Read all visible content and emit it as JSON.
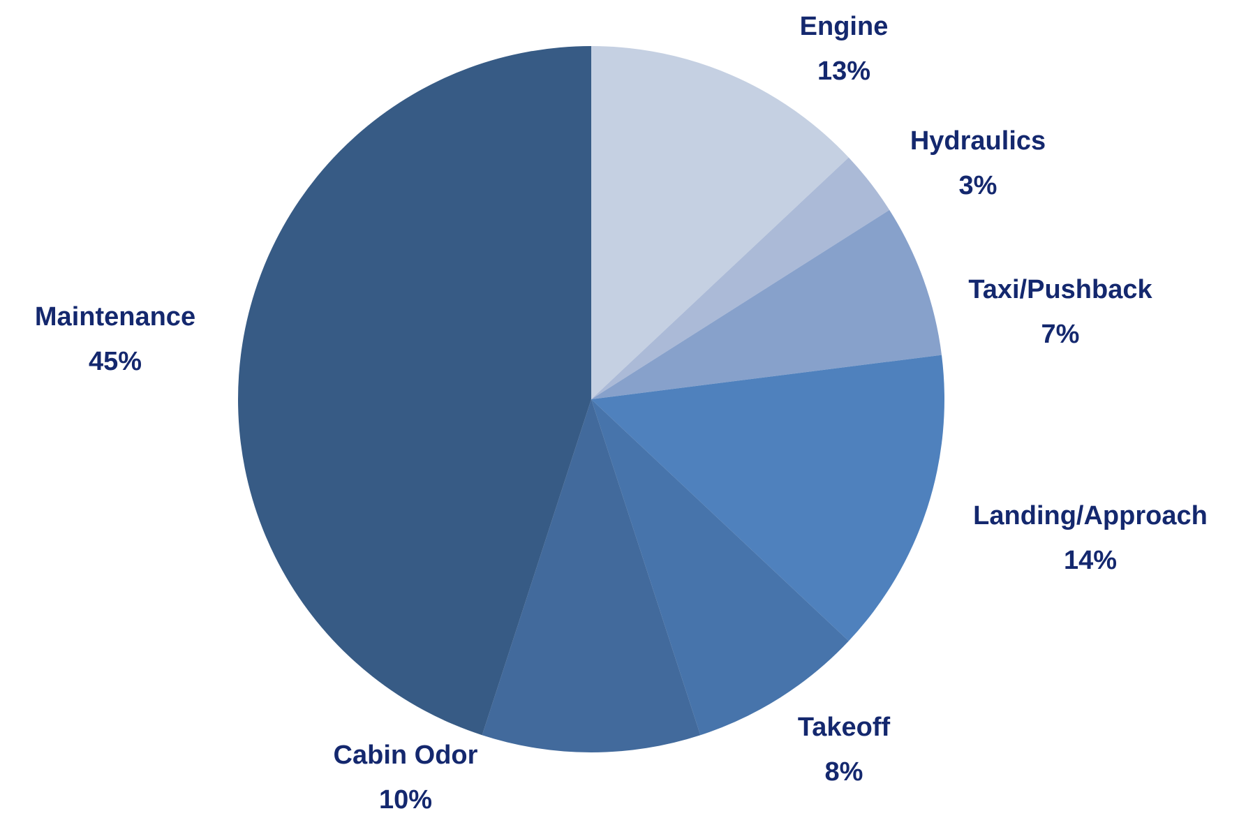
{
  "chart_data": {
    "type": "pie",
    "categories": [
      "Engine",
      "Hydraulics",
      "Taxi/Pushback",
      "Landing/Approach",
      "Takeoff",
      "Cabin Odor",
      "Maintenance"
    ],
    "values": [
      13,
      3,
      7,
      14,
      8,
      10,
      45
    ],
    "value_labels": [
      "13%",
      "3%",
      "7%",
      "14%",
      "8%",
      "10%",
      "45%"
    ],
    "colors": [
      "#c5d0e2",
      "#abbad7",
      "#87a1cb",
      "#4f81bd",
      "#4774ab",
      "#426a9c",
      "#375b85"
    ]
  }
}
